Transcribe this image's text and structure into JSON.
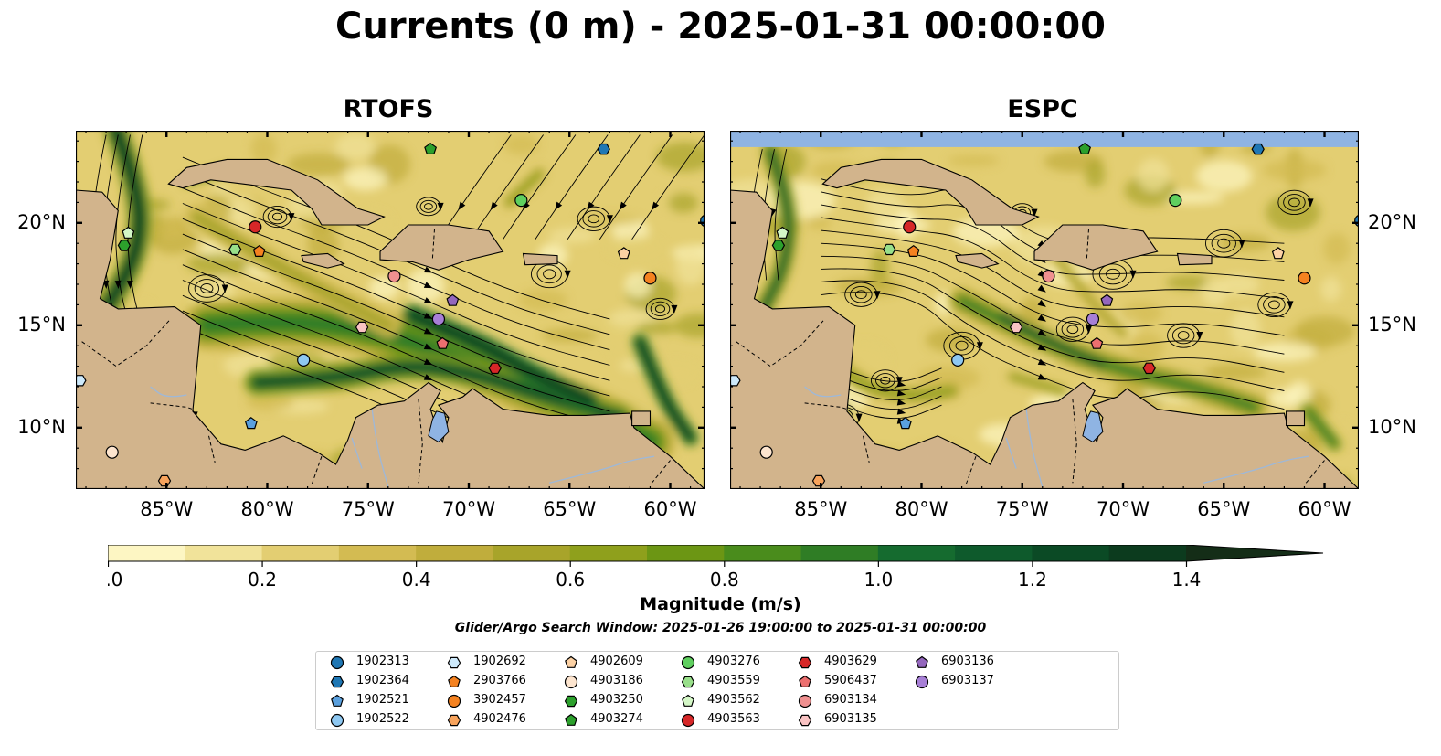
{
  "figure": {
    "title": "Currents (0 m) - 2025-01-31 00:00:00",
    "panels": [
      {
        "title": "RTOFS"
      },
      {
        "title": "ESPC"
      }
    ],
    "x_ticks": [
      "85°W",
      "80°W",
      "75°W",
      "70°W",
      "65°W",
      "60°W"
    ],
    "y_ticks": [
      "20°N",
      "15°N",
      "10°N"
    ],
    "colorbar": {
      "label": "Magnitude (m/s)",
      "ticks": [
        "0.0",
        "0.2",
        "0.4",
        "0.6",
        "0.8",
        "1.0",
        "1.2",
        "1.4"
      ],
      "colors": [
        "#fdf6c3",
        "#f1e39a",
        "#e3ce72",
        "#d3bb52",
        "#c0ad3c",
        "#a8a42a",
        "#8fa01c",
        "#6c9614",
        "#4a8c1c",
        "#2f7d25",
        "#156b2f",
        "#0e5a2c",
        "#0b4a25",
        "#0c3b1e",
        "#142d17"
      ],
      "extend": "max"
    },
    "search_window": "Glider/Argo Search Window: 2025-01-26 19:00:00 to 2025-01-31 00:00:00"
  },
  "colors": {
    "land": "#d2b48c",
    "ocean_mask": "#8fb4e3",
    "streamline": "#000000"
  },
  "chart_data": {
    "type": "map",
    "variable": "surface current magnitude",
    "units": "m/s",
    "depth_m": 0,
    "valid_time": "2025-01-31 00:00:00",
    "models": [
      "RTOFS",
      "ESPC"
    ],
    "lon_range": [
      -89.5,
      -58.3
    ],
    "lat_range": [
      7.0,
      24.5
    ],
    "value_range": [
      0.0,
      1.5
    ],
    "instruments": [
      {
        "id": "1902313",
        "marker": "circle",
        "color": "#1f77b4",
        "lon": -58.2,
        "lat": 20.1
      },
      {
        "id": "1902364",
        "marker": "hexagon",
        "color": "#1f77b4",
        "lon": -63.3,
        "lat": 23.6
      },
      {
        "id": "1902521",
        "marker": "pentagon",
        "color": "#5aa0de",
        "lon": -80.8,
        "lat": 10.2
      },
      {
        "id": "1902522",
        "marker": "circle",
        "color": "#8ec8f2",
        "lon": -78.2,
        "lat": 13.3
      },
      {
        "id": "1902692",
        "marker": "hexagon",
        "color": "#cde9fb",
        "lon": -89.3,
        "lat": 12.3
      },
      {
        "id": "2903766",
        "marker": "pentagon",
        "color": "#f58220",
        "lon": -80.4,
        "lat": 18.6
      },
      {
        "id": "3902457",
        "marker": "circle",
        "color": "#f58220",
        "lon": -61.0,
        "lat": 17.3
      },
      {
        "id": "4902476",
        "marker": "hexagon",
        "color": "#f7a35c",
        "lon": -85.1,
        "lat": 7.4
      },
      {
        "id": "4902609",
        "marker": "pentagon",
        "color": "#fcd1a4",
        "lon": -62.3,
        "lat": 18.5
      },
      {
        "id": "4903186",
        "marker": "circle",
        "color": "#fde5cf",
        "lon": -87.7,
        "lat": 8.8
      },
      {
        "id": "4903250",
        "marker": "hexagon",
        "color": "#2ca02c",
        "lon": -87.1,
        "lat": 18.9
      },
      {
        "id": "4903274",
        "marker": "pentagon",
        "color": "#2ca02c",
        "lon": -71.9,
        "lat": 23.6
      },
      {
        "id": "4903276",
        "marker": "circle",
        "color": "#5fcf5f",
        "lon": -67.4,
        "lat": 21.1
      },
      {
        "id": "4903559",
        "marker": "hexagon",
        "color": "#98df8a",
        "lon": -81.6,
        "lat": 18.7
      },
      {
        "id": "4903562",
        "marker": "pentagon",
        "color": "#d4f7c7",
        "lon": -86.9,
        "lat": 19.5
      },
      {
        "id": "4903563",
        "marker": "circle",
        "color": "#d62728",
        "lon": -80.6,
        "lat": 19.8
      },
      {
        "id": "4903629",
        "marker": "hexagon",
        "color": "#d62728",
        "lon": -68.7,
        "lat": 12.9
      },
      {
        "id": "5906437",
        "marker": "pentagon",
        "color": "#ec6f6f",
        "lon": -71.3,
        "lat": 14.1
      },
      {
        "id": "6903134",
        "marker": "circle",
        "color": "#f09090",
        "lon": -73.7,
        "lat": 17.4
      },
      {
        "id": "6903135",
        "marker": "hexagon",
        "color": "#f9c3c3",
        "lon": -75.3,
        "lat": 14.9
      },
      {
        "id": "6903136",
        "marker": "pentagon",
        "color": "#9467bd",
        "lon": -70.8,
        "lat": 16.2
      },
      {
        "id": "6903137",
        "marker": "circle",
        "color": "#a77fd6",
        "lon": -71.5,
        "lat": 15.3
      }
    ]
  }
}
